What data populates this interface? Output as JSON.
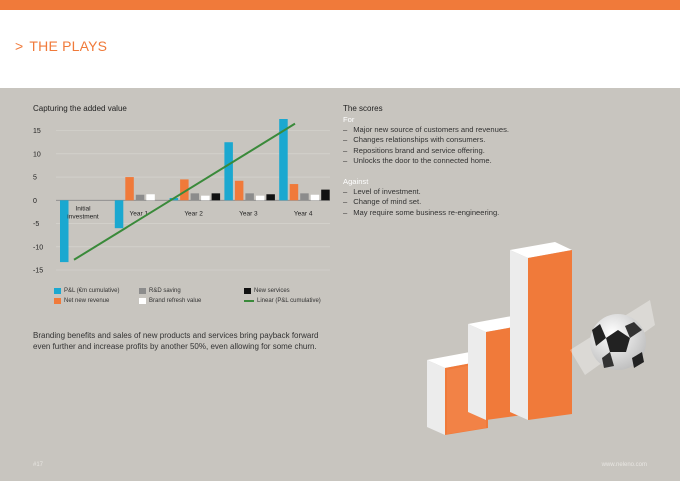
{
  "header": {
    "chevron": ">",
    "title": "THE PLAYS"
  },
  "colors": {
    "accent_orange": "#f07a3a",
    "pl_cumulative": "#1ba8d0",
    "net_new_revenue": "#f07a3a",
    "rd_saving": "#8c8c8c",
    "brand_refresh_value": "#ffffff",
    "new_services": "#111111",
    "linear_trend": "#3a8a3a",
    "background": "#c8c5bf"
  },
  "chart_data": {
    "type": "bar",
    "title": "Capturing the added value",
    "categories": [
      "Initial investment",
      "Year 1",
      "Year 2",
      "Year 3",
      "Year 4"
    ],
    "series": [
      {
        "name": "P&L (€m cumulative)",
        "values": [
          -13.3,
          -6,
          0.5,
          12.5,
          17.5
        ]
      },
      {
        "name": "Net new revenue",
        "values": [
          0,
          5,
          4.5,
          4.2,
          3.5
        ]
      },
      {
        "name": "R&D saving",
        "values": [
          0,
          1.2,
          1.5,
          1.5,
          1.5
        ]
      },
      {
        "name": "Brand refresh value",
        "values": [
          0,
          1.3,
          1.0,
          1.0,
          1.2
        ]
      },
      {
        "name": "New services",
        "values": [
          0,
          0,
          1.5,
          1.3,
          2.3
        ]
      }
    ],
    "trendline": {
      "name": "Linear (P&L cumulative)",
      "start": -12.8,
      "end": 16.5
    },
    "yticks": [
      15,
      10,
      5,
      0,
      -5,
      -10,
      -15
    ],
    "ylim": [
      -15,
      17.5
    ],
    "legend_position": "bottom",
    "grid": true
  },
  "legend": [
    {
      "label": "P&L (€m cumulative)",
      "swatch": "#1ba8d0",
      "kind": "box"
    },
    {
      "label": "R&D saving",
      "swatch": "#8c8c8c",
      "kind": "box"
    },
    {
      "label": "New services",
      "swatch": "#111111",
      "kind": "box"
    },
    {
      "label": "Net new revenue",
      "swatch": "#f07a3a",
      "kind": "box"
    },
    {
      "label": "Brand refresh value",
      "swatch": "#ffffff",
      "kind": "box"
    },
    {
      "label": "Linear (P&L cumulative)",
      "swatch": "#3a8a3a",
      "kind": "line"
    }
  ],
  "body_text": "Branding benefits and sales of new products and services bring payback forward even further and increase profits by another 50%, even allowing for some churn.",
  "scores": {
    "title": "The scores",
    "for_label": "For",
    "for_items": [
      "Major new source of customers and revenues.",
      "Changes relationships with consumers.",
      "Repositions brand and service offering.",
      "Unlocks the door to the connected home."
    ],
    "against_label": "Against",
    "against_items": [
      "Level of investment.",
      "Change of mind set.",
      "May require some business re-engineering."
    ]
  },
  "footer": {
    "page": "#17",
    "url": "www.neleno.com"
  }
}
